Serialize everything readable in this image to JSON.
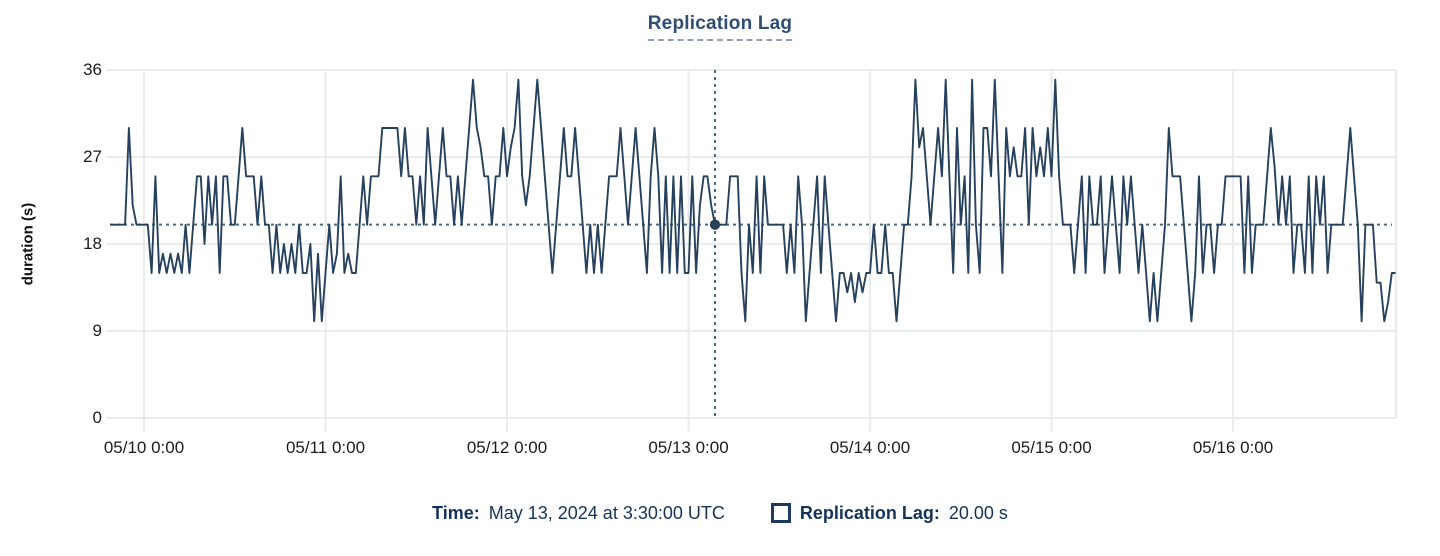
{
  "ui": {
    "time_key": "Time:",
    "series_key": "Replication Lag:"
  },
  "chart_data": {
    "type": "line",
    "title": "Replication Lag",
    "series_name": "Replication Lag",
    "unit": "s",
    "ylabel": "duration (s)",
    "ylim": [
      0,
      36
    ],
    "y_ticks": [
      0,
      9,
      18,
      27,
      36
    ],
    "x_tick_labels": [
      "05/10 0:00",
      "05/11 0:00",
      "05/12 0:00",
      "05/13 0:00",
      "05/14 0:00",
      "05/15 0:00",
      "05/16 0:00"
    ],
    "x_start": "2024-05-09T19:30:00Z",
    "x_interval_minutes": 30,
    "grid": true,
    "legend_position": "none",
    "hover": {
      "time": "May 13, 2024 at 3:30:00 UTC",
      "value": 20,
      "value_text": "20.00 s",
      "index": 160
    },
    "values": [
      20,
      20,
      20,
      20,
      20,
      30,
      22,
      20,
      20,
      20,
      20,
      15,
      25,
      15,
      17,
      15,
      17,
      15,
      17,
      15,
      20,
      15,
      20,
      25,
      25,
      18,
      25,
      20,
      25,
      15,
      25,
      25,
      20,
      20,
      25,
      30,
      25,
      25,
      25,
      20,
      25,
      20,
      20,
      15,
      20,
      15,
      18,
      15,
      18,
      15,
      20,
      15,
      15,
      18,
      10,
      17,
      10,
      15,
      20,
      15,
      17,
      25,
      15,
      17,
      15,
      15,
      20,
      25,
      20,
      25,
      25,
      25,
      30,
      30,
      30,
      30,
      30,
      25,
      30,
      25,
      25,
      20,
      25,
      20,
      30,
      25,
      20,
      25,
      30,
      25,
      25,
      20,
      25,
      20,
      25,
      30,
      35,
      30,
      28,
      25,
      25,
      20,
      25,
      25,
      30,
      25,
      28,
      30,
      35,
      25,
      22,
      25,
      30,
      35,
      30,
      25,
      20,
      15,
      20,
      25,
      30,
      25,
      25,
      30,
      25,
      20,
      15,
      20,
      15,
      20,
      15,
      20,
      25,
      25,
      25,
      30,
      25,
      20,
      25,
      30,
      25,
      20,
      15,
      25,
      30,
      25,
      15,
      25,
      15,
      25,
      15,
      25,
      15,
      15,
      25,
      15,
      22,
      25,
      25,
      22,
      20,
      20,
      20,
      20,
      25,
      25,
      25,
      15,
      10,
      20,
      15,
      25,
      15,
      25,
      20,
      20,
      20,
      20,
      20,
      15,
      20,
      15,
      25,
      20,
      10,
      15,
      20,
      25,
      15,
      25,
      20,
      15,
      10,
      15,
      15,
      13,
      15,
      12,
      15,
      13,
      15,
      15,
      20,
      15,
      15,
      20,
      15,
      15,
      10,
      15,
      20,
      20,
      25,
      35,
      28,
      30,
      25,
      20,
      25,
      30,
      25,
      35,
      25,
      15,
      30,
      20,
      25,
      15,
      35,
      20,
      15,
      30,
      30,
      25,
      35,
      25,
      15,
      30,
      25,
      28,
      25,
      25,
      30,
      20,
      30,
      25,
      28,
      25,
      30,
      25,
      35,
      25,
      20,
      20,
      20,
      15,
      20,
      25,
      15,
      25,
      20,
      20,
      25,
      15,
      20,
      25,
      20,
      15,
      25,
      20,
      25,
      20,
      15,
      20,
      15,
      10,
      15,
      10,
      15,
      20,
      30,
      25,
      25,
      25,
      20,
      15,
      10,
      15,
      25,
      15,
      20,
      20,
      15,
      20,
      20,
      25,
      25,
      25,
      25,
      25,
      15,
      25,
      15,
      20,
      20,
      20,
      25,
      30,
      26,
      20,
      25,
      20,
      25,
      15,
      20,
      20,
      15,
      25,
      15,
      25,
      20,
      25,
      15,
      20,
      20,
      20,
      20,
      25,
      30,
      25,
      20,
      10,
      20,
      20,
      20,
      14,
      14,
      10,
      12,
      15,
      15
    ],
    "colors": {
      "line": "#26415e",
      "crosshair": "#4a6b82",
      "hover_dot": "#2c4257",
      "grid": "#e8e9eb",
      "title": "#2f4e74",
      "readout_text": "#14335b"
    }
  }
}
